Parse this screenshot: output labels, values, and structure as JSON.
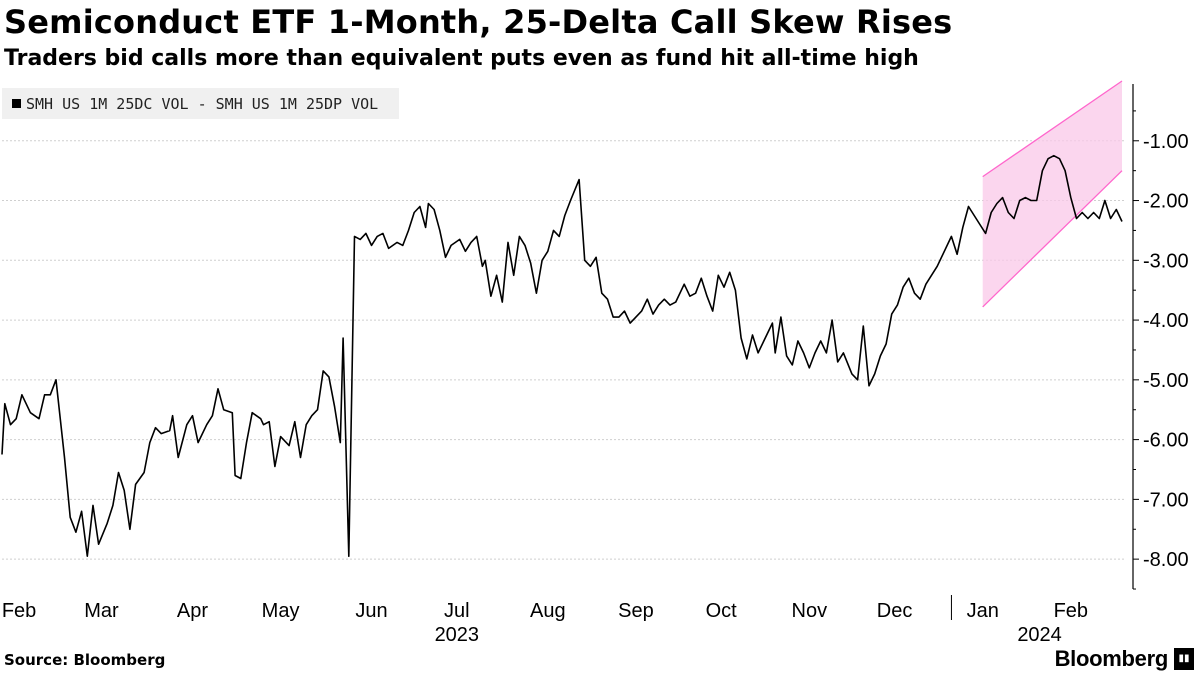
{
  "header": {
    "title": "Semiconduct ETF 1-Month, 25-Delta Call Skew Rises",
    "subtitle": "Traders bid calls more than equivalent puts even as fund hit all-time high"
  },
  "footer": {
    "source": "Source: Bloomberg",
    "brand": "Bloomberg",
    "brand_icon": "bar-chart-icon"
  },
  "chart_data": {
    "type": "line",
    "title": "Semiconduct ETF 1-Month, 25-Delta Call Skew Rises",
    "subtitle": "Traders bid calls more than equivalent puts even as fund hit all-time high",
    "xlabel": "",
    "ylabel": "",
    "ylim": [
      -8.6,
      -0.05
    ],
    "yticks": [
      -1,
      -2,
      -3,
      -4,
      -5,
      -6,
      -7,
      -8
    ],
    "ytick_labels": [
      "-1.00",
      "-2.00",
      "-3.00",
      "-4.00",
      "-5.00",
      "-6.00",
      "-7.00",
      "-8.00"
    ],
    "grid": true,
    "legend": "top-left",
    "legend_label": "SMH US 1M 25DC VOL - SMH US 1M 25DP VOL",
    "x_axis": {
      "start": "2023-02-01",
      "end": "2024-03-01",
      "month_labels": [
        {
          "label": "Feb",
          "date": "2023-02-07"
        },
        {
          "label": "Mar",
          "date": "2023-03-08"
        },
        {
          "label": "Apr",
          "date": "2023-04-09"
        },
        {
          "label": "May",
          "date": "2023-05-10"
        },
        {
          "label": "Jun",
          "date": "2023-06-11"
        },
        {
          "label": "Jul",
          "date": "2023-07-11"
        },
        {
          "label": "Aug",
          "date": "2023-08-12"
        },
        {
          "label": "Sep",
          "date": "2023-09-12"
        },
        {
          "label": "Oct",
          "date": "2023-10-12"
        },
        {
          "label": "Nov",
          "date": "2023-11-12"
        },
        {
          "label": "Dec",
          "date": "2023-12-12"
        },
        {
          "label": "Jan",
          "date": "2024-01-12"
        },
        {
          "label": "Feb",
          "date": "2024-02-12"
        }
      ],
      "year_labels": [
        {
          "label": "2023",
          "date": "2023-07-11"
        },
        {
          "label": "2024",
          "date": "2024-02-01"
        }
      ],
      "year_ticks": [
        "2024-01-01"
      ]
    },
    "series": [
      {
        "name": "SMH US 1M 25DC VOL - SMH US 1M 25DP VOL",
        "color": "#000000",
        "points": [
          {
            "x": "2023-02-01",
            "y": -6.25
          },
          {
            "x": "2023-02-02",
            "y": -5.4
          },
          {
            "x": "2023-02-04",
            "y": -5.75
          },
          {
            "x": "2023-02-06",
            "y": -5.65
          },
          {
            "x": "2023-02-08",
            "y": -5.25
          },
          {
            "x": "2023-02-11",
            "y": -5.55
          },
          {
            "x": "2023-02-14",
            "y": -5.65
          },
          {
            "x": "2023-02-16",
            "y": -5.25
          },
          {
            "x": "2023-02-18",
            "y": -5.25
          },
          {
            "x": "2023-02-20",
            "y": -5.0
          },
          {
            "x": "2023-02-23",
            "y": -6.3
          },
          {
            "x": "2023-02-25",
            "y": -7.3
          },
          {
            "x": "2023-02-27",
            "y": -7.55
          },
          {
            "x": "2023-03-01",
            "y": -7.2
          },
          {
            "x": "2023-03-03",
            "y": -7.95
          },
          {
            "x": "2023-03-05",
            "y": -7.1
          },
          {
            "x": "2023-03-07",
            "y": -7.75
          },
          {
            "x": "2023-03-10",
            "y": -7.4
          },
          {
            "x": "2023-03-12",
            "y": -7.1
          },
          {
            "x": "2023-03-14",
            "y": -6.55
          },
          {
            "x": "2023-03-16",
            "y": -6.85
          },
          {
            "x": "2023-03-18",
            "y": -7.5
          },
          {
            "x": "2023-03-20",
            "y": -6.75
          },
          {
            "x": "2023-03-23",
            "y": -6.55
          },
          {
            "x": "2023-03-25",
            "y": -6.05
          },
          {
            "x": "2023-03-27",
            "y": -5.8
          },
          {
            "x": "2023-03-29",
            "y": -5.9
          },
          {
            "x": "2023-04-01",
            "y": -5.85
          },
          {
            "x": "2023-04-02",
            "y": -5.6
          },
          {
            "x": "2023-04-04",
            "y": -6.3
          },
          {
            "x": "2023-04-07",
            "y": -5.75
          },
          {
            "x": "2023-04-09",
            "y": -5.6
          },
          {
            "x": "2023-04-11",
            "y": -6.05
          },
          {
            "x": "2023-04-14",
            "y": -5.75
          },
          {
            "x": "2023-04-16",
            "y": -5.6
          },
          {
            "x": "2023-04-18",
            "y": -5.15
          },
          {
            "x": "2023-04-20",
            "y": -5.5
          },
          {
            "x": "2023-04-23",
            "y": -5.55
          },
          {
            "x": "2023-04-24",
            "y": -6.6
          },
          {
            "x": "2023-04-26",
            "y": -6.65
          },
          {
            "x": "2023-04-28",
            "y": -6.05
          },
          {
            "x": "2023-04-30",
            "y": -5.55
          },
          {
            "x": "2023-05-03",
            "y": -5.65
          },
          {
            "x": "2023-05-04",
            "y": -5.75
          },
          {
            "x": "2023-05-06",
            "y": -5.7
          },
          {
            "x": "2023-05-08",
            "y": -6.45
          },
          {
            "x": "2023-05-10",
            "y": -5.95
          },
          {
            "x": "2023-05-13",
            "y": -6.1
          },
          {
            "x": "2023-05-15",
            "y": -5.7
          },
          {
            "x": "2023-05-17",
            "y": -6.3
          },
          {
            "x": "2023-05-19",
            "y": -5.75
          },
          {
            "x": "2023-05-21",
            "y": -5.6
          },
          {
            "x": "2023-05-23",
            "y": -5.5
          },
          {
            "x": "2023-05-25",
            "y": -4.85
          },
          {
            "x": "2023-05-27",
            "y": -4.95
          },
          {
            "x": "2023-05-29",
            "y": -5.45
          },
          {
            "x": "2023-05-31",
            "y": -6.05
          },
          {
            "x": "2023-06-01",
            "y": -4.3
          },
          {
            "x": "2023-06-03",
            "y": -7.95
          },
          {
            "x": "2023-06-05",
            "y": -2.6
          },
          {
            "x": "2023-06-07",
            "y": -2.65
          },
          {
            "x": "2023-06-09",
            "y": -2.55
          },
          {
            "x": "2023-06-11",
            "y": -2.75
          },
          {
            "x": "2023-06-13",
            "y": -2.6
          },
          {
            "x": "2023-06-15",
            "y": -2.55
          },
          {
            "x": "2023-06-17",
            "y": -2.8
          },
          {
            "x": "2023-06-20",
            "y": -2.7
          },
          {
            "x": "2023-06-22",
            "y": -2.75
          },
          {
            "x": "2023-06-24",
            "y": -2.5
          },
          {
            "x": "2023-06-26",
            "y": -2.2
          },
          {
            "x": "2023-06-28",
            "y": -2.1
          },
          {
            "x": "2023-06-30",
            "y": -2.45
          },
          {
            "x": "2023-07-01",
            "y": -2.05
          },
          {
            "x": "2023-07-03",
            "y": -2.15
          },
          {
            "x": "2023-07-05",
            "y": -2.5
          },
          {
            "x": "2023-07-07",
            "y": -2.95
          },
          {
            "x": "2023-07-09",
            "y": -2.75
          },
          {
            "x": "2023-07-12",
            "y": -2.65
          },
          {
            "x": "2023-07-14",
            "y": -2.85
          },
          {
            "x": "2023-07-16",
            "y": -2.7
          },
          {
            "x": "2023-07-18",
            "y": -2.6
          },
          {
            "x": "2023-07-20",
            "y": -3.1
          },
          {
            "x": "2023-07-21",
            "y": -3.0
          },
          {
            "x": "2023-07-23",
            "y": -3.6
          },
          {
            "x": "2023-07-25",
            "y": -3.25
          },
          {
            "x": "2023-07-27",
            "y": -3.7
          },
          {
            "x": "2023-07-29",
            "y": -2.7
          },
          {
            "x": "2023-07-31",
            "y": -3.25
          },
          {
            "x": "2023-08-02",
            "y": -2.6
          },
          {
            "x": "2023-08-04",
            "y": -2.75
          },
          {
            "x": "2023-08-06",
            "y": -3.05
          },
          {
            "x": "2023-08-08",
            "y": -3.55
          },
          {
            "x": "2023-08-10",
            "y": -3.0
          },
          {
            "x": "2023-08-12",
            "y": -2.85
          },
          {
            "x": "2023-08-14",
            "y": -2.5
          },
          {
            "x": "2023-08-16",
            "y": -2.6
          },
          {
            "x": "2023-08-18",
            "y": -2.25
          },
          {
            "x": "2023-08-20",
            "y": -2.0
          },
          {
            "x": "2023-08-23",
            "y": -1.65
          },
          {
            "x": "2023-08-25",
            "y": -3.0
          },
          {
            "x": "2023-08-27",
            "y": -3.1
          },
          {
            "x": "2023-08-29",
            "y": -2.95
          },
          {
            "x": "2023-08-31",
            "y": -3.55
          },
          {
            "x": "2023-09-02",
            "y": -3.65
          },
          {
            "x": "2023-09-04",
            "y": -3.95
          },
          {
            "x": "2023-09-06",
            "y": -3.95
          },
          {
            "x": "2023-09-08",
            "y": -3.85
          },
          {
            "x": "2023-09-10",
            "y": -4.05
          },
          {
            "x": "2023-09-12",
            "y": -3.95
          },
          {
            "x": "2023-09-14",
            "y": -3.85
          },
          {
            "x": "2023-09-16",
            "y": -3.65
          },
          {
            "x": "2023-09-18",
            "y": -3.9
          },
          {
            "x": "2023-09-20",
            "y": -3.75
          },
          {
            "x": "2023-09-22",
            "y": -3.65
          },
          {
            "x": "2023-09-24",
            "y": -3.75
          },
          {
            "x": "2023-09-26",
            "y": -3.7
          },
          {
            "x": "2023-09-29",
            "y": -3.4
          },
          {
            "x": "2023-10-01",
            "y": -3.6
          },
          {
            "x": "2023-10-03",
            "y": -3.55
          },
          {
            "x": "2023-10-05",
            "y": -3.3
          },
          {
            "x": "2023-10-07",
            "y": -3.6
          },
          {
            "x": "2023-10-09",
            "y": -3.85
          },
          {
            "x": "2023-10-11",
            "y": -3.25
          },
          {
            "x": "2023-10-13",
            "y": -3.45
          },
          {
            "x": "2023-10-15",
            "y": -3.2
          },
          {
            "x": "2023-10-17",
            "y": -3.5
          },
          {
            "x": "2023-10-19",
            "y": -4.3
          },
          {
            "x": "2023-10-21",
            "y": -4.65
          },
          {
            "x": "2023-10-23",
            "y": -4.25
          },
          {
            "x": "2023-10-25",
            "y": -4.55
          },
          {
            "x": "2023-10-27",
            "y": -4.35
          },
          {
            "x": "2023-10-30",
            "y": -4.05
          },
          {
            "x": "2023-10-31",
            "y": -4.55
          },
          {
            "x": "2023-11-02",
            "y": -3.95
          },
          {
            "x": "2023-11-04",
            "y": -4.6
          },
          {
            "x": "2023-11-06",
            "y": -4.75
          },
          {
            "x": "2023-11-08",
            "y": -4.35
          },
          {
            "x": "2023-11-10",
            "y": -4.55
          },
          {
            "x": "2023-11-12",
            "y": -4.8
          },
          {
            "x": "2023-11-14",
            "y": -4.55
          },
          {
            "x": "2023-11-16",
            "y": -4.35
          },
          {
            "x": "2023-11-18",
            "y": -4.55
          },
          {
            "x": "2023-11-20",
            "y": -4.0
          },
          {
            "x": "2023-11-22",
            "y": -4.7
          },
          {
            "x": "2023-11-24",
            "y": -4.55
          },
          {
            "x": "2023-11-27",
            "y": -4.9
          },
          {
            "x": "2023-11-29",
            "y": -5.0
          },
          {
            "x": "2023-12-01",
            "y": -4.1
          },
          {
            "x": "2023-12-03",
            "y": -5.1
          },
          {
            "x": "2023-12-05",
            "y": -4.9
          },
          {
            "x": "2023-12-07",
            "y": -4.6
          },
          {
            "x": "2023-12-09",
            "y": -4.4
          },
          {
            "x": "2023-12-11",
            "y": -3.9
          },
          {
            "x": "2023-12-13",
            "y": -3.75
          },
          {
            "x": "2023-12-15",
            "y": -3.45
          },
          {
            "x": "2023-12-17",
            "y": -3.3
          },
          {
            "x": "2023-12-19",
            "y": -3.55
          },
          {
            "x": "2023-12-21",
            "y": -3.65
          },
          {
            "x": "2023-12-23",
            "y": -3.4
          },
          {
            "x": "2023-12-25",
            "y": -3.25
          },
          {
            "x": "2023-12-27",
            "y": -3.1
          },
          {
            "x": "2023-12-29",
            "y": -2.9
          },
          {
            "x": "2024-01-01",
            "y": -2.6
          },
          {
            "x": "2024-01-03",
            "y": -2.9
          },
          {
            "x": "2024-01-05",
            "y": -2.45
          },
          {
            "x": "2024-01-07",
            "y": -2.1
          },
          {
            "x": "2024-01-09",
            "y": -2.25
          },
          {
            "x": "2024-01-11",
            "y": -2.4
          },
          {
            "x": "2024-01-13",
            "y": -2.55
          },
          {
            "x": "2024-01-15",
            "y": -2.2
          },
          {
            "x": "2024-01-17",
            "y": -2.05
          },
          {
            "x": "2024-01-19",
            "y": -1.95
          },
          {
            "x": "2024-01-21",
            "y": -2.2
          },
          {
            "x": "2024-01-23",
            "y": -2.3
          },
          {
            "x": "2024-01-25",
            "y": -2.0
          },
          {
            "x": "2024-01-27",
            "y": -1.95
          },
          {
            "x": "2024-01-29",
            "y": -2.0
          },
          {
            "x": "2024-01-31",
            "y": -2.0
          },
          {
            "x": "2024-02-02",
            "y": -1.5
          },
          {
            "x": "2024-02-04",
            "y": -1.3
          },
          {
            "x": "2024-02-06",
            "y": -1.25
          },
          {
            "x": "2024-02-08",
            "y": -1.3
          },
          {
            "x": "2024-02-10",
            "y": -1.5
          },
          {
            "x": "2024-02-12",
            "y": -1.95
          },
          {
            "x": "2024-02-14",
            "y": -2.3
          },
          {
            "x": "2024-02-16",
            "y": -2.2
          },
          {
            "x": "2024-02-18",
            "y": -2.3
          },
          {
            "x": "2024-02-20",
            "y": -2.2
          },
          {
            "x": "2024-02-22",
            "y": -2.3
          },
          {
            "x": "2024-02-24",
            "y": -2.0
          },
          {
            "x": "2024-02-26",
            "y": -2.3
          },
          {
            "x": "2024-02-28",
            "y": -2.15
          },
          {
            "x": "2024-03-01",
            "y": -2.35
          }
        ]
      }
    ],
    "annotations": [
      {
        "type": "channel",
        "description": "pink rising channel highlighting the recent uptrend",
        "color": "#ff66cc",
        "fill": "#f9c8e8",
        "upper_line": [
          {
            "x": "2024-01-12",
            "y": -1.6
          },
          {
            "x": "2024-03-01",
            "y": 0.0
          }
        ],
        "lower_line": [
          {
            "x": "2024-01-12",
            "y": -3.78
          },
          {
            "x": "2024-03-01",
            "y": -1.5
          }
        ]
      }
    ]
  }
}
